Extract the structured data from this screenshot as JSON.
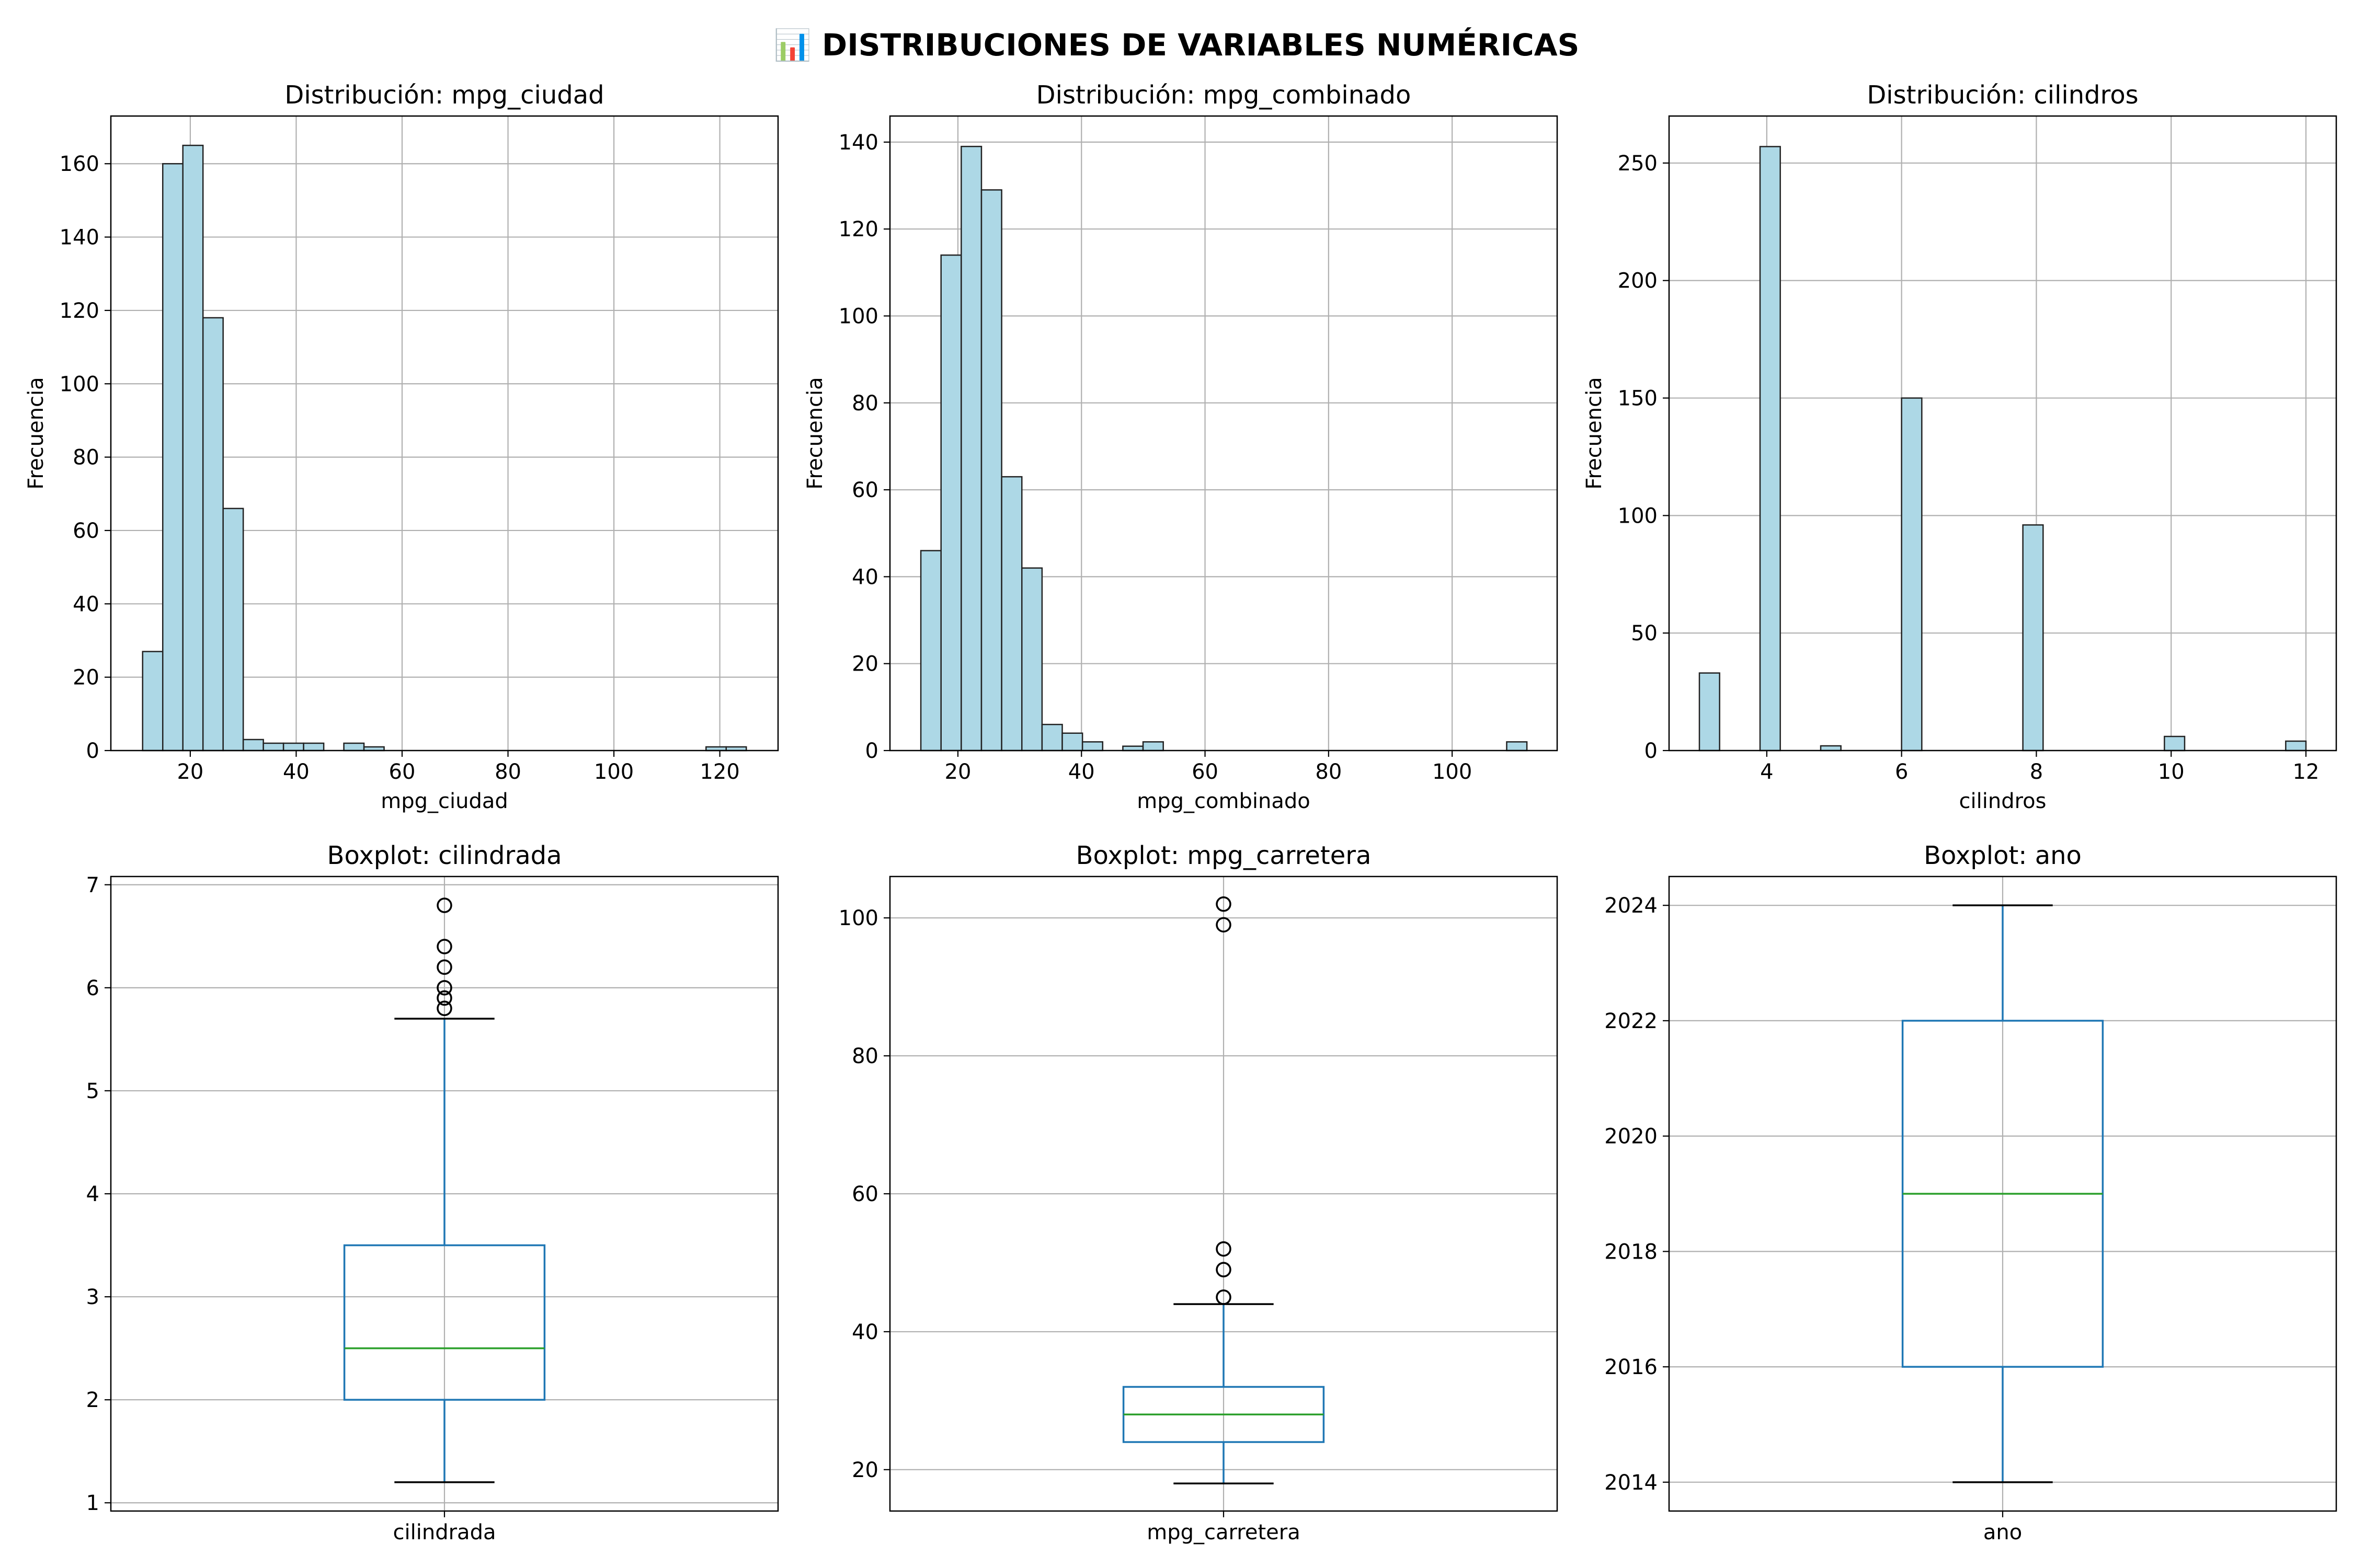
{
  "figure_title": "📊 DISTRIBUCIONES DE VARIABLES NUMÉRICAS",
  "colors": {
    "hist_fill": "#add8e6",
    "hist_edge": "#222222",
    "box": "#1f77b4",
    "median": "#2ca02c",
    "grid": "#b0b0b0",
    "flier": "#000000"
  },
  "chart_data": [
    {
      "type": "histogram",
      "title": "Distribución: mpg_ciudad",
      "xlabel": "mpg_ciudad",
      "ylabel": "Frecuencia",
      "xlim": [
        5,
        131
      ],
      "ylim": [
        0,
        173
      ],
      "xticks": [
        20,
        40,
        60,
        80,
        100,
        120
      ],
      "yticks": [
        0,
        20,
        40,
        60,
        80,
        100,
        120,
        140,
        160
      ],
      "bin_start": 11,
      "bin_width": 3.8,
      "counts": [
        27,
        160,
        165,
        118,
        66,
        3,
        2,
        2,
        2,
        0,
        2,
        1,
        0,
        0,
        0,
        0,
        0,
        0,
        0,
        0,
        0,
        0,
        0,
        0,
        0,
        0,
        0,
        0,
        1,
        1
      ],
      "grid": true
    },
    {
      "type": "histogram",
      "title": "Distribución: mpg_combinado",
      "xlabel": "mpg_combinado",
      "ylabel": "Frecuencia",
      "xlim": [
        9,
        117
      ],
      "ylim": [
        0,
        146
      ],
      "xticks": [
        20,
        40,
        60,
        80,
        100
      ],
      "yticks": [
        0,
        20,
        40,
        60,
        80,
        100,
        120,
        140
      ],
      "bin_start": 14,
      "bin_width": 3.27,
      "counts": [
        46,
        114,
        139,
        129,
        63,
        42,
        6,
        4,
        2,
        0,
        1,
        2,
        0,
        0,
        0,
        0,
        0,
        0,
        0,
        0,
        0,
        0,
        0,
        0,
        0,
        0,
        0,
        0,
        0,
        2
      ],
      "grid": true
    },
    {
      "type": "histogram",
      "title": "Distribución: cilindros",
      "xlabel": "cilindros",
      "ylabel": "Frecuencia",
      "xlim": [
        2.55,
        12.45
      ],
      "ylim": [
        0,
        270
      ],
      "xticks": [
        4,
        6,
        8,
        10,
        12
      ],
      "yticks": [
        0,
        50,
        100,
        150,
        200,
        250
      ],
      "bin_start": 3,
      "bin_width": 0.3,
      "counts": [
        33,
        0,
        0,
        257,
        0,
        0,
        2,
        0,
        0,
        0,
        150,
        0,
        0,
        0,
        0,
        0,
        96,
        0,
        0,
        0,
        0,
        0,
        0,
        6,
        0,
        0,
        0,
        0,
        0,
        4
      ],
      "grid": true
    },
    {
      "type": "boxplot",
      "title": "Boxplot: cilindrada",
      "xlabel": "cilindrada",
      "category": "cilindrada",
      "ylim": [
        0.92,
        7.08
      ],
      "yticks": [
        1,
        2,
        3,
        4,
        5,
        6,
        7
      ],
      "whisker_low": 1.2,
      "q1": 2.0,
      "median": 2.5,
      "q3": 3.5,
      "whisker_high": 5.7,
      "fliers": [
        5.8,
        5.9,
        6.0,
        6.2,
        6.4,
        6.8
      ],
      "grid": true
    },
    {
      "type": "boxplot",
      "title": "Boxplot: mpg_carretera",
      "xlabel": "mpg_carretera",
      "category": "mpg_carretera",
      "ylim": [
        14,
        106
      ],
      "yticks": [
        20,
        40,
        60,
        80,
        100
      ],
      "whisker_low": 18,
      "q1": 24,
      "median": 28,
      "q3": 32,
      "whisker_high": 44,
      "fliers": [
        45,
        49,
        52,
        99,
        102
      ],
      "grid": true
    },
    {
      "type": "boxplot",
      "title": "Boxplot: ano",
      "xlabel": "ano",
      "category": "ano",
      "ylim": [
        2013.5,
        2024.5
      ],
      "yticks": [
        2014,
        2016,
        2018,
        2020,
        2022,
        2024
      ],
      "whisker_low": 2014,
      "q1": 2016,
      "median": 2019,
      "q3": 2022,
      "whisker_high": 2024,
      "fliers": [],
      "grid": true
    }
  ]
}
